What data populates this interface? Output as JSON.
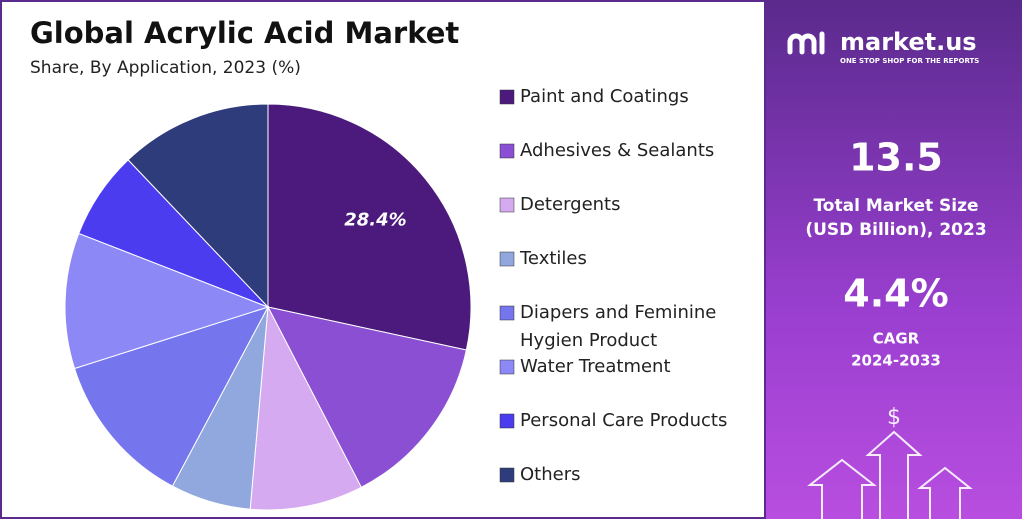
{
  "chart_data": {
    "type": "pie",
    "title": "Global Acrylic Acid Market",
    "subtitle": "Share, By Application, 2023 (%)",
    "categories": [
      "Paint and Coatings",
      "Adhesives & Sealants",
      "Detergents",
      "Textiles",
      "Diapers and Feminine Hygien Product",
      "Water Treatment",
      "Personal Care Products",
      "Others"
    ],
    "values": [
      28.4,
      14,
      9,
      6.4,
      12.3,
      10.8,
      7,
      12.1
    ],
    "value_labels": [
      "28.4%",
      null,
      null,
      null,
      null,
      null,
      null,
      null
    ],
    "colors": [
      "#4b1a7c",
      "#8a4fd2",
      "#d5aaf0",
      "#90a8de",
      "#7575ee",
      "#8c88f6",
      "#4b3cef",
      "#2f3c7c"
    ]
  },
  "brand": {
    "name": "market.us",
    "tagline": "ONE STOP SHOP FOR THE REPORTS"
  },
  "stats": {
    "market_size": "13.5",
    "market_size_label": "Total Market Size",
    "market_size_unit": "(USD Billion), 2023",
    "cagr": "4.4%",
    "cagr_label": "CAGR",
    "cagr_period": "2024-2033"
  }
}
